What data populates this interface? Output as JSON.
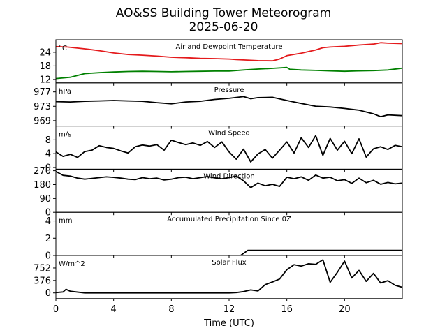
{
  "title": "AO&SS Building Tower Meteorogram",
  "subtitle": "2025-06-20",
  "chart_data": {
    "type": "line",
    "xlabel": "Time (UTC)",
    "xlim": [
      0,
      24
    ],
    "xticks": [
      0,
      4,
      8,
      12,
      16,
      20
    ],
    "grid": false,
    "panels": [
      {
        "name": "temperature",
        "title": "Air and Dewpoint Temperature",
        "unit": "°C",
        "ylim": [
          10.5,
          29.5
        ],
        "yticks": [
          12,
          18,
          24
        ],
        "series": [
          {
            "color": "#e41a1c",
            "x": [
              0,
              0.8,
              2,
              3,
              4,
              5,
              6,
              7,
              8,
              9,
              10,
              11,
              12,
              12.5,
              13,
              14,
              15,
              15.5,
              16,
              17,
              18,
              18.5,
              19,
              20,
              21,
              22,
              22.5,
              23,
              24
            ],
            "y": [
              26.5,
              26.3,
              25.5,
              24.7,
              23.7,
              23.0,
              22.7,
              22.3,
              21.8,
              21.6,
              21.3,
              21.2,
              21.0,
              20.8,
              20.6,
              20.3,
              20.2,
              21.0,
              22.5,
              23.6,
              25.0,
              26.0,
              26.3,
              26.6,
              27.2,
              27.6,
              28.2,
              28.0,
              27.8
            ]
          },
          {
            "color": "#008000",
            "x": [
              0,
              1,
              2,
              3,
              4,
              5,
              6,
              7,
              8,
              9,
              10,
              11,
              12,
              13,
              14,
              15,
              16,
              16.2,
              17,
              18,
              19,
              20,
              21,
              22,
              23,
              24
            ],
            "y": [
              12.4,
              13.0,
              14.6,
              15.0,
              15.3,
              15.5,
              15.6,
              15.5,
              15.4,
              15.5,
              15.6,
              15.7,
              15.7,
              16.2,
              16.6,
              16.9,
              17.3,
              16.5,
              16.2,
              16.0,
              15.8,
              15.6,
              15.8,
              15.9,
              16.2,
              17.0
            ]
          }
        ]
      },
      {
        "name": "pressure",
        "title": "Pressure",
        "unit": "hPa",
        "ylim": [
          967.5,
          979.5
        ],
        "yticks": [
          969,
          973,
          977
        ],
        "series": [
          {
            "color": "#000000",
            "x": [
              0,
              1,
              2,
              3,
              4,
              5,
              6,
              7,
              8,
              9,
              10,
              11,
              12,
              13,
              13.5,
              14,
              15,
              16,
              17,
              18,
              19,
              20,
              21,
              22,
              22.5,
              23,
              24
            ],
            "y": [
              974.3,
              974.2,
              974.4,
              974.5,
              974.6,
              974.5,
              974.4,
              974.0,
              973.7,
              974.2,
              974.4,
              974.9,
              975.2,
              975.7,
              975.1,
              975.4,
              975.5,
              974.6,
              973.8,
              973.0,
              972.8,
              972.4,
              971.9,
              970.9,
              970.1,
              970.6,
              970.4
            ]
          }
        ]
      },
      {
        "name": "wind_speed",
        "title": "Wind Speed",
        "unit": "m/s",
        "ylim": [
          -0.5,
          12
        ],
        "yticks": [
          0,
          4,
          8
        ],
        "series": [
          {
            "color": "#000000",
            "x": [
              0,
              0.5,
              1,
              1.5,
              2,
              2.5,
              3,
              3.5,
              4,
              4.5,
              5,
              5.5,
              6,
              6.5,
              7,
              7.5,
              8,
              8.5,
              9,
              9.5,
              10,
              10.5,
              11,
              11.5,
              12,
              12.5,
              13,
              13.5,
              14,
              14.5,
              15,
              15.5,
              16,
              16.5,
              17,
              17.5,
              18,
              18.5,
              19,
              19.5,
              20,
              20.5,
              21,
              21.5,
              22,
              22.5,
              23,
              23.5,
              24
            ],
            "y": [
              4.5,
              3.2,
              3.8,
              2.9,
              4.6,
              5.0,
              6.3,
              5.8,
              5.5,
              4.8,
              4.2,
              6.0,
              6.5,
              6.2,
              6.6,
              5.0,
              7.9,
              7.2,
              6.6,
              7.1,
              6.4,
              7.5,
              5.8,
              7.4,
              4.5,
              2.4,
              5.3,
              1.6,
              3.9,
              5.2,
              2.7,
              5.0,
              7.4,
              4.2,
              8.6,
              5.8,
              9.2,
              3.5,
              8.4,
              5.0,
              7.6,
              4.0,
              8.3,
              3.0,
              5.4,
              6.0,
              5.2,
              6.4,
              6.0
            ]
          }
        ]
      },
      {
        "name": "wind_direction",
        "title": "Wind Direction",
        "ylim": [
          0,
          280
        ],
        "yticks": [
          0,
          90,
          180,
          270
        ],
        "series": [
          {
            "color": "#000000",
            "x": [
              0,
              0.5,
              1,
              1.5,
              2,
              2.5,
              3,
              3.5,
              4,
              4.5,
              5,
              5.5,
              6,
              6.5,
              7,
              7.5,
              8,
              8.5,
              9,
              9.5,
              10,
              10.5,
              11,
              11.5,
              12,
              12.5,
              13,
              13.5,
              14,
              14.5,
              15,
              15.5,
              16,
              16.5,
              17,
              17.5,
              18,
              18.5,
              19,
              19.5,
              20,
              20.5,
              21,
              21.5,
              22,
              22.5,
              23,
              23.5,
              24
            ],
            "y": [
              265,
              240,
              235,
              222,
              215,
              220,
              225,
              230,
              227,
              222,
              215,
              212,
              225,
              218,
              222,
              210,
              215,
              225,
              228,
              218,
              225,
              232,
              224,
              218,
              225,
              235,
              205,
              160,
              190,
              172,
              182,
              168,
              228,
              218,
              230,
              208,
              242,
              222,
              228,
              205,
              212,
              188,
              222,
              192,
              208,
              182,
              194,
              185,
              190
            ]
          }
        ]
      },
      {
        "name": "precipitation",
        "title": "Accumulated Precipitation Since 0Z",
        "unit": "mm",
        "ylim": [
          0,
          5
        ],
        "yticks": [
          0,
          2,
          4
        ],
        "series": [
          {
            "color": "#000000",
            "x": [
              0,
              12.8,
              13.3,
              24
            ],
            "y": [
              0.0,
              0.0,
              0.6,
              0.6
            ]
          }
        ]
      },
      {
        "name": "solar_flux",
        "title": "Solar Flux",
        "unit": "W/m^2",
        "ylim": [
          -170,
          1130
        ],
        "yticks": [
          0,
          376,
          752
        ],
        "series": [
          {
            "color": "#000000",
            "x": [
              0,
              0.5,
              0.7,
              1,
              2,
              4,
              6,
              8,
              10,
              12,
              12.5,
              13,
              13.5,
              14,
              14.5,
              15,
              15.5,
              16,
              16.5,
              17,
              17.5,
              18,
              18.5,
              19,
              19.5,
              20,
              20.5,
              21,
              21.5,
              22,
              22.5,
              23,
              23.5,
              24
            ],
            "y": [
              10,
              30,
              110,
              50,
              0,
              0,
              0,
              0,
              0,
              0,
              10,
              40,
              90,
              60,
              250,
              330,
              420,
              700,
              850,
              810,
              880,
              860,
              1000,
              320,
              620,
              960,
              450,
              680,
              350,
              590,
              300,
              370,
              230,
              170
            ]
          }
        ]
      }
    ]
  }
}
